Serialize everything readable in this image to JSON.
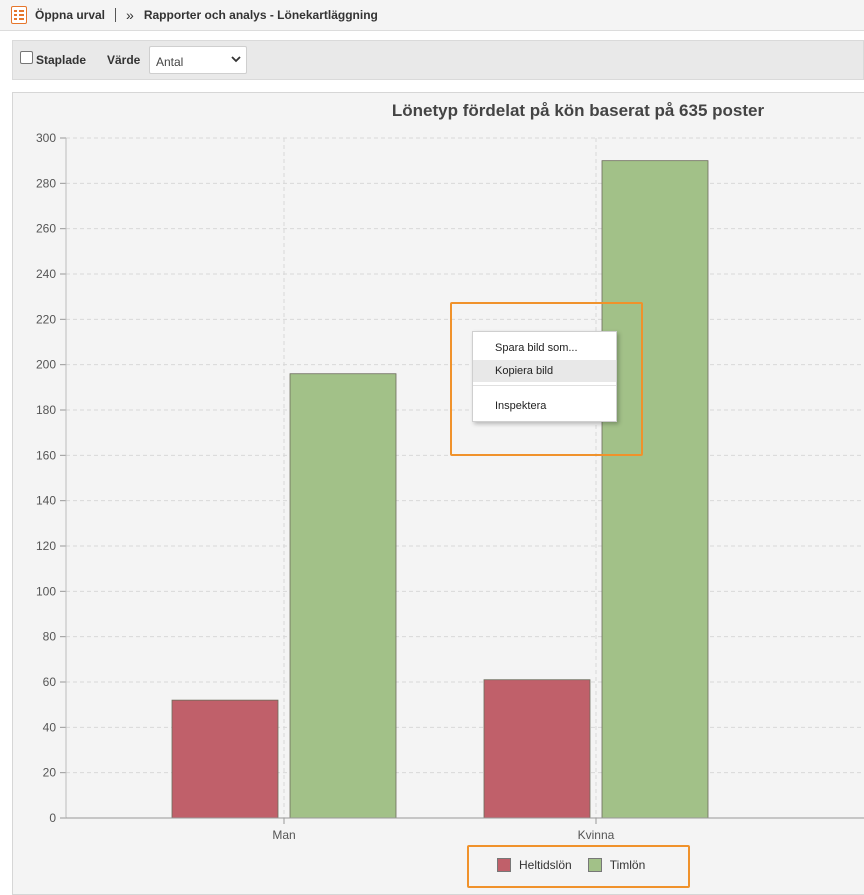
{
  "topbar": {
    "open_selection": "Öppna urval",
    "breadcrumb": "Rapporter och analys - Lönekartläggning"
  },
  "toolbar": {
    "stacked_label": "Staplade",
    "stacked_checked": false,
    "value_label": "Värde",
    "value_select": "Antal"
  },
  "context_menu": {
    "items": [
      "Spara bild som...",
      "Kopiera bild",
      "Inspektera"
    ],
    "highlighted": "Kopiera bild"
  },
  "chart_data": {
    "type": "bar",
    "title": "Lönetyp fördelat på kön baserat på 635 poster",
    "categories": [
      "Man",
      "Kvinna"
    ],
    "series": [
      {
        "name": "Heltidslön",
        "values": [
          52,
          61
        ],
        "color": "#c0606a"
      },
      {
        "name": "Timlön",
        "values": [
          196,
          290
        ],
        "color": "#a2c188"
      }
    ],
    "ylim": [
      0,
      300
    ],
    "yticks": [
      0,
      20,
      40,
      60,
      80,
      100,
      120,
      140,
      160,
      180,
      200,
      220,
      240,
      260,
      280,
      300
    ],
    "grid": true,
    "legend_position": "bottom-center"
  }
}
